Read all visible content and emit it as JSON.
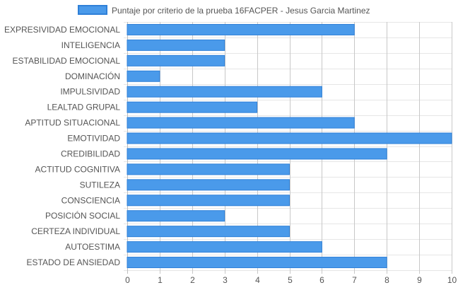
{
  "chart_data": {
    "type": "bar",
    "orientation": "horizontal",
    "categories": [
      "EXPRESIVIDAD EMOCIONAL",
      "INTELIGENCIA",
      "ESTABILIDAD EMOCIONAL",
      "DOMINACIÓN",
      "IMPULSIVIDAD",
      "LEALTAD GRUPAL",
      "APTITUD SITUACIONAL",
      "EMOTIVIDAD",
      "CREDIBILIDAD",
      "ACTITUD COGNITIVA",
      "SUTILEZA",
      "CONSCIENCIA",
      "POSICIÓN SOCIAL",
      "CERTEZA INDIVIDUAL",
      "AUTOESTIMA",
      "ESTADO DE ANSIEDAD"
    ],
    "series": [
      {
        "name": "Puntaje por criterio de la prueba 16FACPER - Jesus Garcia Martinez",
        "values": [
          7,
          3,
          3,
          1,
          6,
          4,
          7,
          10,
          8,
          5,
          5,
          5,
          3,
          5,
          6,
          8
        ],
        "color": "#4a9aea",
        "border_color": "#2f80d8"
      }
    ],
    "x_ticks": [
      "0",
      "1",
      "2",
      "3",
      "4",
      "5",
      "6",
      "7",
      "8",
      "9",
      "10"
    ],
    "xlim": [
      0,
      10
    ],
    "grid": true,
    "legend_position": "top"
  }
}
